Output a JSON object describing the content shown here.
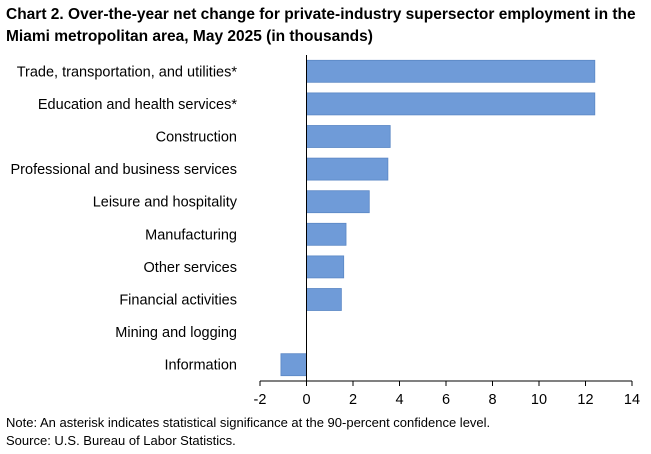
{
  "chart_data": {
    "type": "bar",
    "orientation": "horizontal",
    "title": "Chart 2. Over-the-year net change for private-industry supersector employment in the Miami metropolitan area, May 2025 (in thousands)",
    "categories": [
      "Trade, transportation, and utilities*",
      "Education and health services*",
      "Construction",
      "Professional and business services",
      "Leisure and hospitality",
      "Manufacturing",
      "Other services",
      "Financial activities",
      "Mining and logging",
      "Information"
    ],
    "values": [
      12.4,
      12.4,
      3.6,
      3.5,
      2.7,
      1.7,
      1.6,
      1.5,
      0.0,
      -1.1
    ],
    "xlim": [
      -2,
      14
    ],
    "xticks": [
      "-2",
      "0",
      "2",
      "4",
      "6",
      "8",
      "10",
      "12",
      "14"
    ],
    "grid": false,
    "bar_color": "#6f9bd8",
    "bar_edge_color": "#5b87c5"
  },
  "notes": {
    "note": "Note: An asterisk indicates statistical significance at the 90-percent confidence level.",
    "source": "Source: U.S. Bureau of Labor Statistics."
  }
}
